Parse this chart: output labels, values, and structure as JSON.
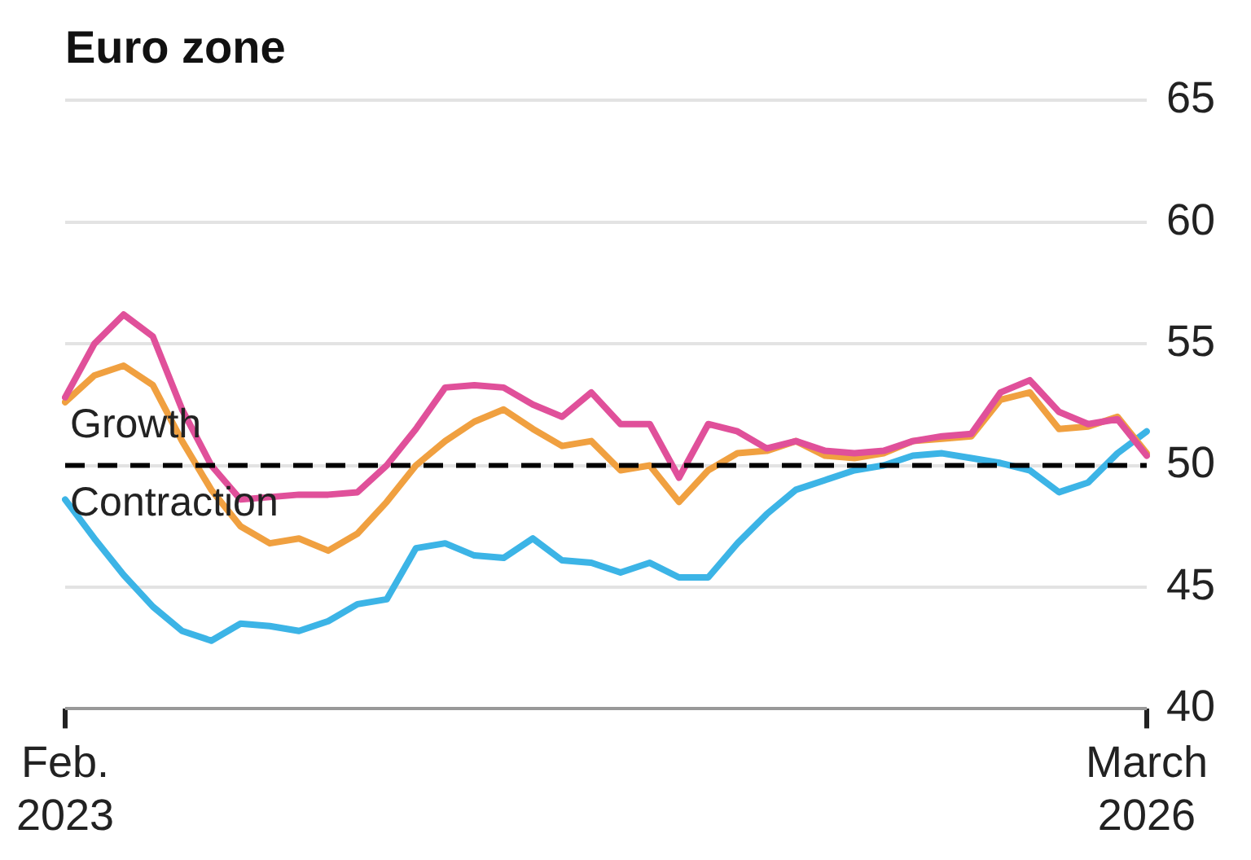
{
  "chart_data": {
    "type": "line",
    "title": "Euro zone",
    "categories": [
      "Feb. 2023",
      null,
      null,
      null,
      null,
      null,
      null,
      null,
      null,
      null,
      null,
      null,
      null,
      null,
      null,
      null,
      null,
      null,
      null,
      null,
      null,
      null,
      null,
      null,
      null,
      null,
      null,
      null,
      null,
      null,
      null,
      null,
      null,
      null,
      null,
      null,
      null,
      "March 2026"
    ],
    "series": [
      {
        "color": "#e0509a",
        "values": [
          52.8,
          55.0,
          56.2,
          55.3,
          52.3,
          50.0,
          48.6,
          48.7,
          48.8,
          48.8,
          48.9,
          50.0,
          51.5,
          53.2,
          53.3,
          53.2,
          52.5,
          52.0,
          53.0,
          51.7,
          51.7,
          49.5,
          51.7,
          51.4,
          50.7,
          51.0,
          50.6,
          50.5,
          50.6,
          51.0,
          51.2,
          51.3,
          53.0,
          53.5,
          52.2,
          51.7,
          51.9,
          50.4
        ]
      },
      {
        "color": "#f0a040",
        "values": [
          52.6,
          53.7,
          54.1,
          53.3,
          51.0,
          49.0,
          47.5,
          46.8,
          47.0,
          46.5,
          47.2,
          48.5,
          50.0,
          51.0,
          51.8,
          52.3,
          51.5,
          50.8,
          51.0,
          49.8,
          50.0,
          48.5,
          49.8,
          50.5,
          50.6,
          51.0,
          50.4,
          50.3,
          50.5,
          51.0,
          51.1,
          51.2,
          52.7,
          53.0,
          51.5,
          51.6,
          52.0,
          50.5
        ]
      },
      {
        "color": "#3cb4e6",
        "values": [
          48.6,
          47.0,
          45.5,
          44.2,
          43.2,
          42.8,
          43.5,
          43.4,
          43.2,
          43.6,
          44.3,
          44.5,
          46.6,
          46.8,
          46.3,
          46.2,
          47.0,
          46.1,
          46.0,
          45.6,
          46.0,
          45.4,
          45.4,
          46.8,
          48.0,
          49.0,
          49.4,
          49.8,
          50.0,
          50.4,
          50.5,
          50.3,
          50.1,
          49.8,
          48.9,
          49.3,
          50.5,
          51.4
        ]
      }
    ],
    "ylim": [
      40,
      65
    ],
    "yticks": [
      40,
      45,
      50,
      55,
      60,
      65
    ],
    "grid": "y",
    "legend": false,
    "marker": "none",
    "line_style": "solid",
    "ref_lines": [
      {
        "axis": "y",
        "value": 50,
        "color": "#000000",
        "line_style": "dashed"
      }
    ],
    "annotations": [
      "Growth",
      "Contraction"
    ]
  }
}
